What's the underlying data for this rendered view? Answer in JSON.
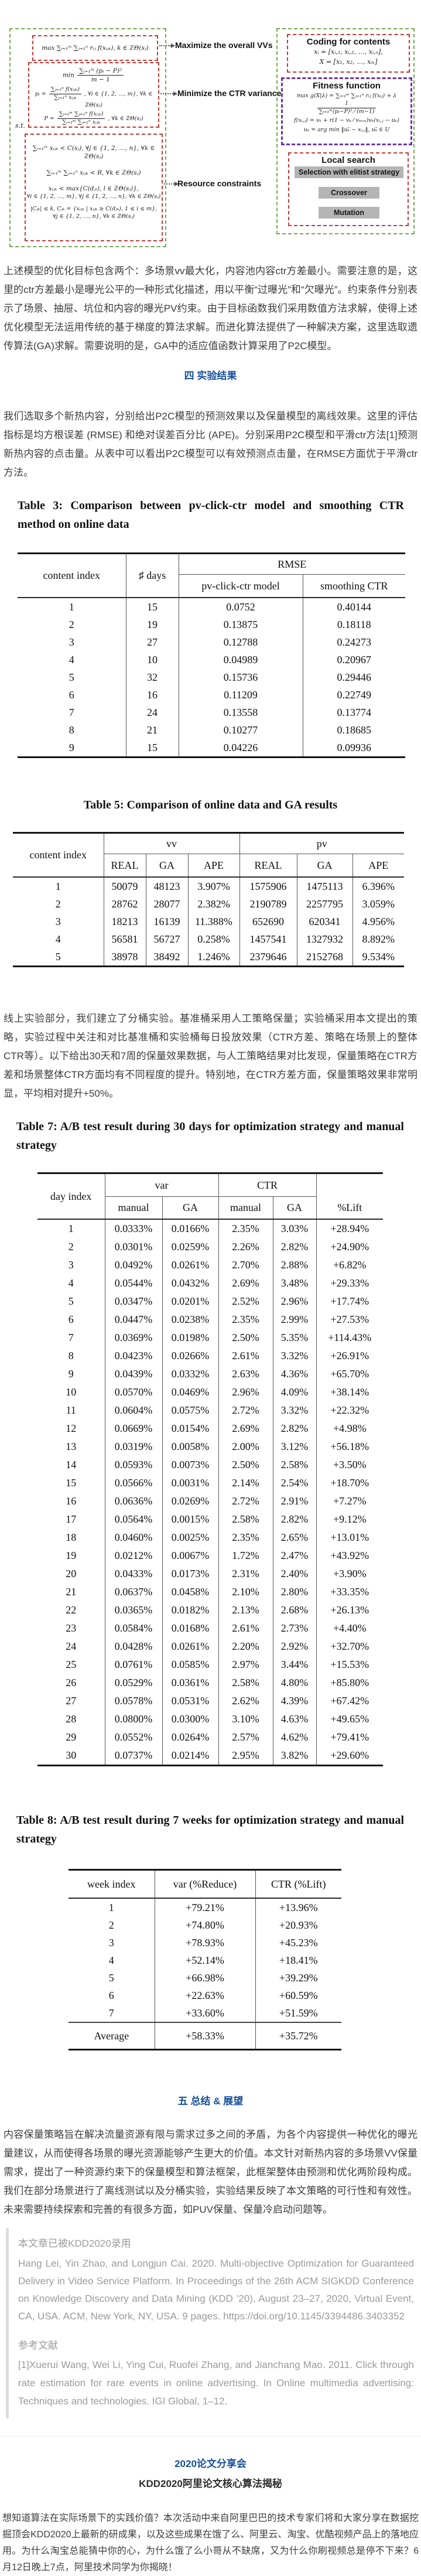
{
  "figure": {
    "left": {
      "obj1": "max ∑ᵢ₌₁ᵐ ∑ⱼ₌₁ⁿ rᵢⱼ f(xᵢⱼₖ), k ∈ ℤΘ(sⱼ)",
      "min_prefix": "min",
      "min_num": "∑ᵢ₌₁ᵐ (pᵢ − P)²",
      "min_den": "m − 1",
      "p_lhs": "pᵢ =",
      "p_num": "∑ⱼ₌₁ⁿ f(xᵢⱼₖ)",
      "p_den": "∑ⱼ₌₁ⁿ xᵢⱼₖ",
      "p_suffix": ", ∀i ∈ {1, 2, …, m}, ∀k ∈ ℤΘ(sⱼ)",
      "Pd_lhs": "P =",
      "Pd_num": "∑ᵢ₌₁ᵐ ∑ⱼ₌₁ⁿ f(xᵢⱼₖ)",
      "Pd_den": "∑ᵢ₌₁ᵐ ∑ⱼ₌₁ⁿ xᵢⱼₖ",
      "Pd_suffix": ", ∀k ∈ ℤΘ(sⱼ)",
      "st": "s.t.",
      "c1": "∑ᵢ₌₁ᵐ xᵢⱼₖ < C(sⱼ), ∀j ∈ {1, 2, …, n}, ∀k ∈ ℤΘ(sⱼ)",
      "c2": "∑ᵢ₌₁ᵐ ∑ⱼ₌₁ⁿ xᵢⱼₖ < R, ∀k ∈ ℤΘ(sⱼ)",
      "c3a": "xᵢⱼₖ < max{C(dⱼₗ), l ∈ ℤΘ(sⱼ)},",
      "c3b": "∀i ∈ {1, 2, …, m}, ∀j ∈ {1, 2, …, n}, ∀k ∈ ℤΘ(sⱼ)",
      "c4a": "|Cⱼₖ| ≤ k, Cⱼₖ = {xᵢⱼₖ | xᵢⱼₖ ≥ C(dⱼₖ), 1 ≤ i ≤ m},",
      "c4b": "∀j ∈ {1, 2, …, n}, ∀k ∈ ℤΘ(sⱼ)"
    },
    "labels": {
      "maximize": "Maximize the overall VVs",
      "minimize": "Minimize the CTR variance",
      "resource": "Resource constraints"
    },
    "right": {
      "coding_title": "Coding for contents",
      "coding1": "xᵢ = [xᵢ,₁, xᵢ,₂, …, xᵢ,ₙ],",
      "coding2": "X = [x₁, x₂, …, xₘ]",
      "fitness_title": "Fitness function",
      "fit1_lhs": "max g(X|λ) = ∑ᵢ₌₁ᵐ ∑ⱼ₌₁ⁿ rᵢⱼ f(xᵢⱼ) + λ",
      "fit1_num": "1",
      "fit1_den": "∑ᵢ₌₁ᵐ(pᵢ−P)² ⁄ (m−1)",
      "fit2": "f(xᵢ,ⱼ) = vₖ + r(1 − vₖ ⁄ vₘₐₓ)vₖ(xᵢ,ⱼ − uₖ)",
      "fit3": "uₖ = arg min ‖uₖ̃ − xᵢ,ⱼ‖, uₖ̃ ∈ U",
      "local_title": "Local search",
      "buttons": [
        "Selection with elitist strategy",
        "Crossover",
        "Mutation"
      ]
    }
  },
  "headings": {
    "h4": "四  实验结果",
    "h5": "五  总结 & 展望"
  },
  "paragraphs": {
    "p1": "上述模型的优化目标包含两个：多场景vv最大化，内容池内容ctr方差最小。需要注意的是，这里的ctr方差最小是曝光公平的一种形式化描述，用以平衡“过曝光”和“欠曝光”。约束条件分别表示了场景、抽屉、坑位和内容的曝光PV约束。由于目标函数我们采用数值方法求解，使得上述优化模型无法运用传统的基于梯度的算法求解。而进化算法提供了一种解决方案，这里选取遗传算法(GA)求解。需要说明的是，GA中的适应值函数计算采用了P2C模型。",
    "p2": "我们选取多个新热内容，分别给出P2C模型的预测效果以及保量模型的离线效果。这里的评估指标是均方根误差 (RMSE) 和绝对误差百分比 (APE)。分别采用P2C模型和平滑ctr方法[1]预测新热内容的点击量。从表中可以看出P2C模型可以有效预测点击量，在RMSE方面优于平滑ctr方法。",
    "p3": "线上实验部分，我们建立了分桶实验。基准桶采用人工策略保量；实验桶采用本文提出的策略，实验过程中关注和对比基准桶和实验桶每日投放效果（CTR方差、策略在场景上的整体CTR等）。以下给出30天和7周的保量效果数据，与人工策略结果对比发现，保量策略在CTR方差和场景整体CTR方面均有不同程度的提升。特别地，在CTR方差方面，保量策略效果非常明显，平均相对提升+50%。",
    "summary": "内容保量策略旨在解决流量资源有限与需求过多之间的矛盾，为各个内容提供一种优化的曝光量建议，从而使得各场景的曝光资源能够产生更大的价值。本文针对新热内容的多场景VV保量需求，提出了一种资源约束下的保量模型和算法框架，此框架整体由预测和优化两阶段构成。我们在部分场景进行了离线测试以及分桶实验，实验结果反映了本文策略的可行性和有效性。未来需要持续探索和完善的有很多方面，如PUV保量、保量冷启动问题等。",
    "footer": "想知道算法在实际场景下的实践价值？本次活动中来自阿里巴巴的技术专家们将和大家分享在数据挖掘顶会KDD2020上最新的研成果，以及这些成果在饿了么、阿里云、淘宝、优酷视频产品上的落地应用。为什么淘宝总能猜中你的心，为什么饿了么小哥从不缺席，又为什么你刷视频总是停不下来？6月12日晚上7点，阿里技术同学为你揭晓！"
  },
  "table3": {
    "title": "Table 3: Comparison between pv-click-ctr model and smoothing CTR method on online data",
    "col_index": "content index",
    "col_days": "♯ days",
    "group": "RMSE",
    "col_model": "pv-click-ctr model",
    "col_smooth": "smoothing CTR",
    "rows": [
      [
        "1",
        "15",
        "0.0752",
        "0.40144"
      ],
      [
        "2",
        "19",
        "0.13875",
        "0.18118"
      ],
      [
        "3",
        "27",
        "0.12788",
        "0.24273"
      ],
      [
        "4",
        "10",
        "0.04989",
        "0.20967"
      ],
      [
        "5",
        "32",
        "0.15736",
        "0.29446"
      ],
      [
        "6",
        "16",
        "0.11209",
        "0.22749"
      ],
      [
        "7",
        "24",
        "0.13558",
        "0.13774"
      ],
      [
        "8",
        "21",
        "0.10277",
        "0.18685"
      ],
      [
        "9",
        "15",
        "0.04226",
        "0.09936"
      ]
    ]
  },
  "table5": {
    "title": "Table 5: Comparison of online data and GA results",
    "col_index": "content index",
    "group_vv": "vv",
    "group_pv": "pv",
    "sub": [
      "REAL",
      "GA",
      "APE",
      "REAL",
      "GA",
      "APE"
    ],
    "rows": [
      [
        "1",
        "50079",
        "48123",
        "3.907%",
        "1575906",
        "1475113",
        "6.396%"
      ],
      [
        "2",
        "28762",
        "28077",
        "2.382%",
        "2190789",
        "2257795",
        "3.059%"
      ],
      [
        "3",
        "18213",
        "16139",
        "11.388%",
        "652690",
        "620341",
        "4.956%"
      ],
      [
        "4",
        "56581",
        "56727",
        "0.258%",
        "1457541",
        "1327932",
        "8.892%"
      ],
      [
        "5",
        "38978",
        "38492",
        "1.246%",
        "2379646",
        "2152768",
        "9.534%"
      ]
    ]
  },
  "table7": {
    "title": "Table 7: A/B test result during 30 days for optimization strategy and manual strategy",
    "col_index": "day index",
    "group_var": "var",
    "group_ctr": "CTR",
    "sub": [
      "manual",
      "GA",
      "manual",
      "GA",
      "%Lift"
    ],
    "rows": [
      [
        "1",
        "0.0333%",
        "0.0166%",
        "2.35%",
        "3.03%",
        "+28.94%"
      ],
      [
        "2",
        "0.0301%",
        "0.0259%",
        "2.26%",
        "2.82%",
        "+24.90%"
      ],
      [
        "3",
        "0.0492%",
        "0.0261%",
        "2.70%",
        "2.88%",
        "+6.82%"
      ],
      [
        "4",
        "0.0544%",
        "0.0432%",
        "2.69%",
        "3.48%",
        "+29.33%"
      ],
      [
        "5",
        "0.0347%",
        "0.0201%",
        "2.52%",
        "2.96%",
        "+17.74%"
      ],
      [
        "6",
        "0.0447%",
        "0.0238%",
        "2.35%",
        "2.99%",
        "+27.53%"
      ],
      [
        "7",
        "0.0369%",
        "0.0198%",
        "2.50%",
        "5.35%",
        "+114.43%"
      ],
      [
        "8",
        "0.0423%",
        "0.0266%",
        "2.61%",
        "3.32%",
        "+26.91%"
      ],
      [
        "9",
        "0.0439%",
        "0.0332%",
        "2.63%",
        "4.36%",
        "+65.70%"
      ],
      [
        "10",
        "0.0570%",
        "0.0469%",
        "2.96%",
        "4.09%",
        "+38.14%"
      ],
      [
        "11",
        "0.0604%",
        "0.0575%",
        "2.72%",
        "3.32%",
        "+22.32%"
      ],
      [
        "12",
        "0.0669%",
        "0.0154%",
        "2.69%",
        "2.82%",
        "+4.98%"
      ],
      [
        "13",
        "0.0319%",
        "0.0058%",
        "2.00%",
        "3.12%",
        "+56.18%"
      ],
      [
        "14",
        "0.0593%",
        "0.0073%",
        "2.50%",
        "2.58%",
        "+3.50%"
      ],
      [
        "15",
        "0.0566%",
        "0.0031%",
        "2.14%",
        "2.54%",
        "+18.70%"
      ],
      [
        "16",
        "0.0636%",
        "0.0269%",
        "2.72%",
        "2.91%",
        "+7.27%"
      ],
      [
        "17",
        "0.0564%",
        "0.0015%",
        "2.58%",
        "2.82%",
        "+9.12%"
      ],
      [
        "18",
        "0.0460%",
        "0.0025%",
        "2.35%",
        "2.65%",
        "+13.01%"
      ],
      [
        "19",
        "0.0212%",
        "0.0067%",
        "1.72%",
        "2.47%",
        "+43.92%"
      ],
      [
        "20",
        "0.0433%",
        "0.0173%",
        "2.31%",
        "2.40%",
        "+3.90%"
      ],
      [
        "21",
        "0.0637%",
        "0.0458%",
        "2.10%",
        "2.80%",
        "+33.35%"
      ],
      [
        "22",
        "0.0365%",
        "0.0182%",
        "2.13%",
        "2.68%",
        "+26.13%"
      ],
      [
        "23",
        "0.0584%",
        "0.0168%",
        "2.61%",
        "2.73%",
        "+4.40%"
      ],
      [
        "24",
        "0.0428%",
        "0.0261%",
        "2.20%",
        "2.92%",
        "+32.70%"
      ],
      [
        "25",
        "0.0761%",
        "0.0585%",
        "2.97%",
        "3.44%",
        "+15.53%"
      ],
      [
        "26",
        "0.0529%",
        "0.0361%",
        "2.58%",
        "4.80%",
        "+85.80%"
      ],
      [
        "27",
        "0.0578%",
        "0.0531%",
        "2.62%",
        "4.39%",
        "+67.42%"
      ],
      [
        "28",
        "0.0800%",
        "0.0300%",
        "3.10%",
        "4.63%",
        "+49.65%"
      ],
      [
        "29",
        "0.0552%",
        "0.0264%",
        "2.57%",
        "4.62%",
        "+79.41%"
      ],
      [
        "30",
        "0.0737%",
        "0.0214%",
        "2.95%",
        "3.82%",
        "+29.60%"
      ]
    ]
  },
  "table8": {
    "title": "Table 8: A/B test result during 7 weeks for optimization strategy and manual strategy",
    "headers": [
      "week index",
      "var (%Reduce)",
      "CTR (%Lift)"
    ],
    "rows": [
      [
        "1",
        "+79.21%",
        "+13.96%"
      ],
      [
        "2",
        "+74.80%",
        "+20.93%"
      ],
      [
        "3",
        "+78.93%",
        "+45.23%"
      ],
      [
        "4",
        "+52.14%",
        "+18.41%"
      ],
      [
        "5",
        "+66.98%",
        "+39.29%"
      ],
      [
        "6",
        "+22.63%",
        "+60.59%"
      ],
      [
        "7",
        "+33.60%",
        "+51.59%"
      ]
    ],
    "average": [
      "Average",
      "+58.33%",
      "+35.72%"
    ]
  },
  "quote": {
    "line1": "本文章已被KDD2020录用",
    "citation": "Hang Lei, Yin Zhao, and Longjun Cai. 2020. Multi-objective Optimization for Guaranteed Delivery in Video Service Platform. In Proceedings of the 26th ACM SIGKDD Conference on Knowledge Discovery and Data Mining (KDD ’20), August 23–27, 2020, Virtual Event, CA, USA. ACM, New York, NY, USA. 9 pages. https://doi.org/10.1145/3394486.3403352",
    "ref_title": "参考文献",
    "ref1": "[1]Xuerui Wang, Wei Li, Ying Cui, Ruofei Zhang, and Jianchang Mao. 2011. Click through rate estimation for rare events in online advertising. In Online multimedia advertising: Techniques and technologies. IGI Global, 1–12."
  },
  "footer": {
    "blue": "2020论文分享会",
    "dark": "KDD2020阿里论文核心算法揭秘"
  },
  "colors": {
    "heading_blue": "#17509a",
    "green_dash": "#74a850",
    "red_dash": "#bf3b37",
    "purple_dash": "#6b35a8",
    "gray_button": "#b5b5b5",
    "quote_gray": "#9b9b9b"
  }
}
